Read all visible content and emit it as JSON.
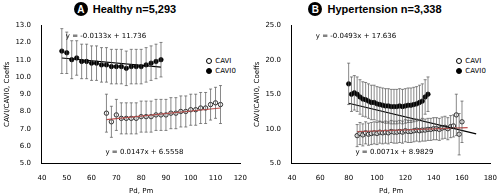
{
  "chart_data": [
    {
      "type": "scatter",
      "panel": "A",
      "title": "Healthy n=5,293",
      "x_label": "Pd, Pm",
      "y_label": "CAVI/CAVI0, Coeffs",
      "xlim": [
        40,
        120
      ],
      "xticks": [
        40,
        50,
        60,
        70,
        80,
        90,
        100,
        110,
        120
      ],
      "ylim": [
        5,
        13
      ],
      "yticks": [
        {
          "value": 5,
          "label": "5.0"
        },
        {
          "value": 6,
          "label": "6.0"
        },
        {
          "value": 7,
          "label": "7.0"
        },
        {
          "value": 8,
          "label": "8.0"
        },
        {
          "value": 9,
          "label": "9.0"
        },
        {
          "value": 10,
          "label": "10.0"
        },
        {
          "value": 11,
          "label": "11.0"
        },
        {
          "value": 12,
          "label": "12.0"
        },
        {
          "value": 13,
          "label": "13.0"
        }
      ],
      "grid": false,
      "legend": "right",
      "series": [
        {
          "name": "CAVI",
          "color": "#000000",
          "marker": "circle_open",
          "x": [
            66,
            68,
            70,
            72,
            74,
            76,
            78,
            80,
            82,
            84,
            86,
            88,
            90,
            92,
            94,
            96,
            98,
            100,
            102,
            104,
            106,
            108,
            110,
            112
          ],
          "values": [
            7.9,
            7.4,
            7.8,
            7.6,
            7.6,
            7.6,
            7.6,
            7.7,
            7.7,
            7.7,
            7.8,
            7.8,
            7.8,
            7.9,
            7.9,
            8.0,
            8.0,
            8.1,
            8.1,
            8.2,
            8.2,
            8.4,
            8.5,
            8.4
          ],
          "errors": [
            1.1,
            0.9,
            0.9,
            0.9,
            0.9,
            0.9,
            0.9,
            0.9,
            0.9,
            0.9,
            0.9,
            0.9,
            0.9,
            0.9,
            0.9,
            0.9,
            0.9,
            0.9,
            0.9,
            0.9,
            0.9,
            0.9,
            0.9,
            1.1
          ]
        },
        {
          "name": "CAVI0",
          "color": "#000000",
          "marker": "circle",
          "x": [
            48,
            50,
            52,
            54,
            56,
            58,
            60,
            62,
            64,
            66,
            68,
            70,
            72,
            74,
            76,
            78,
            80,
            82,
            84,
            86,
            88
          ],
          "values": [
            11.5,
            11.4,
            11.0,
            11.1,
            10.9,
            10.9,
            10.8,
            10.8,
            10.7,
            10.7,
            10.6,
            10.6,
            10.6,
            10.5,
            10.6,
            10.6,
            10.6,
            10.7,
            10.8,
            10.9,
            11.0
          ],
          "errors": [
            1.3,
            1.2,
            1.1,
            1.0,
            1.0,
            1.0,
            1.0,
            1.0,
            1.0,
            1.0,
            1.0,
            1.0,
            1.0,
            1.0,
            1.0,
            1.0,
            1.0,
            1.0,
            1.0,
            1.0,
            1.0
          ]
        },
        {
          "type": "line",
          "color": "#000000",
          "line_style": "solid",
          "x": [
            48,
            88
          ],
          "values": [
            11.1,
            10.57
          ]
        },
        {
          "type": "line",
          "color": "#c0504d",
          "line_style": "solid",
          "x": [
            66,
            112
          ],
          "values": [
            7.53,
            8.2
          ]
        }
      ],
      "annotations": [
        "y = -0.0133x + 11.736",
        "y = 0.0147x + 6.5558"
      ]
    },
    {
      "type": "scatter",
      "panel": "B",
      "title": "Hypertension n=3,338",
      "x_label": "Pd, Pm",
      "y_label": "CAVI/CAVI0, Coeffs",
      "xlim": [
        40,
        180
      ],
      "xticks": [
        40,
        60,
        80,
        100,
        120,
        140,
        160,
        180
      ],
      "ylim": [
        5,
        25
      ],
      "yticks": [
        {
          "value": 5,
          "label": "5.0"
        },
        {
          "value": 10,
          "label": "10.0"
        },
        {
          "value": 15,
          "label": "15.0"
        },
        {
          "value": 20,
          "label": "20.0"
        },
        {
          "value": 25,
          "label": "25.0"
        }
      ],
      "grid": false,
      "legend": "right",
      "series": [
        {
          "name": "CAVI",
          "color": "#000000",
          "marker": "circle_open",
          "x": [
            86,
            88,
            90,
            92,
            94,
            96,
            98,
            100,
            102,
            104,
            106,
            108,
            110,
            112,
            114,
            116,
            118,
            120,
            122,
            124,
            126,
            128,
            130,
            132,
            134,
            136,
            138,
            140,
            142,
            144,
            146,
            148,
            150,
            152,
            154,
            156,
            158,
            160
          ],
          "values": [
            9.0,
            9.3,
            9.1,
            9.4,
            9.2,
            9.3,
            9.4,
            9.3,
            9.5,
            9.4,
            9.5,
            9.4,
            9.6,
            9.5,
            9.5,
            9.6,
            9.5,
            9.7,
            9.6,
            9.6,
            9.7,
            9.8,
            9.7,
            9.8,
            9.8,
            9.9,
            9.9,
            10.0,
            10.0,
            9.9,
            10.1,
            10.2,
            10.0,
            10.3,
            10.4,
            12.0,
            9.2,
            11.0
          ],
          "errors": [
            1.6,
            1.6,
            1.6,
            1.6,
            1.6,
            1.6,
            1.6,
            1.6,
            1.6,
            1.6,
            1.6,
            1.6,
            1.6,
            1.6,
            1.6,
            1.6,
            1.6,
            1.6,
            1.6,
            1.6,
            1.6,
            1.6,
            1.6,
            1.6,
            1.6,
            1.6,
            1.6,
            1.6,
            1.6,
            1.6,
            1.6,
            1.6,
            1.6,
            1.6,
            1.6,
            3.0,
            3.0,
            3.0
          ]
        },
        {
          "name": "CAVI0",
          "color": "#000000",
          "marker": "circle",
          "x": [
            80,
            82,
            84,
            86,
            88,
            90,
            92,
            94,
            96,
            98,
            100,
            102,
            104,
            106,
            108,
            110,
            112,
            114,
            116,
            118,
            120,
            122,
            124,
            126,
            128,
            130,
            132,
            134,
            136
          ],
          "values": [
            16.5,
            15.0,
            15.2,
            15.0,
            14.6,
            14.3,
            14.2,
            14.0,
            13.8,
            13.8,
            13.6,
            13.5,
            13.4,
            13.3,
            13.3,
            13.2,
            13.2,
            13.2,
            13.3,
            13.2,
            13.3,
            13.4,
            13.4,
            13.5,
            13.6,
            13.8,
            14.0,
            14.6,
            15.0
          ],
          "errors": [
            3.0,
            2.5,
            2.5,
            2.5,
            2.5,
            2.5,
            2.5,
            2.5,
            2.5,
            2.5,
            2.5,
            2.5,
            2.5,
            2.5,
            2.5,
            2.5,
            2.5,
            2.5,
            2.5,
            2.5,
            2.5,
            2.5,
            2.5,
            2.5,
            2.5,
            2.5,
            2.5,
            2.5,
            2.5
          ]
        },
        {
          "type": "line",
          "color": "#000000",
          "line_style": "solid",
          "x": [
            80,
            170
          ],
          "values": [
            13.69,
            9.26
          ]
        },
        {
          "type": "line",
          "color": "#c0504d",
          "line_style": "solid",
          "x": [
            86,
            164
          ],
          "values": [
            9.59,
            10.15
          ]
        }
      ],
      "annotations": [
        "y = -0.0493x + 17.636",
        "y = 0.0071x + 8.9829"
      ]
    }
  ]
}
